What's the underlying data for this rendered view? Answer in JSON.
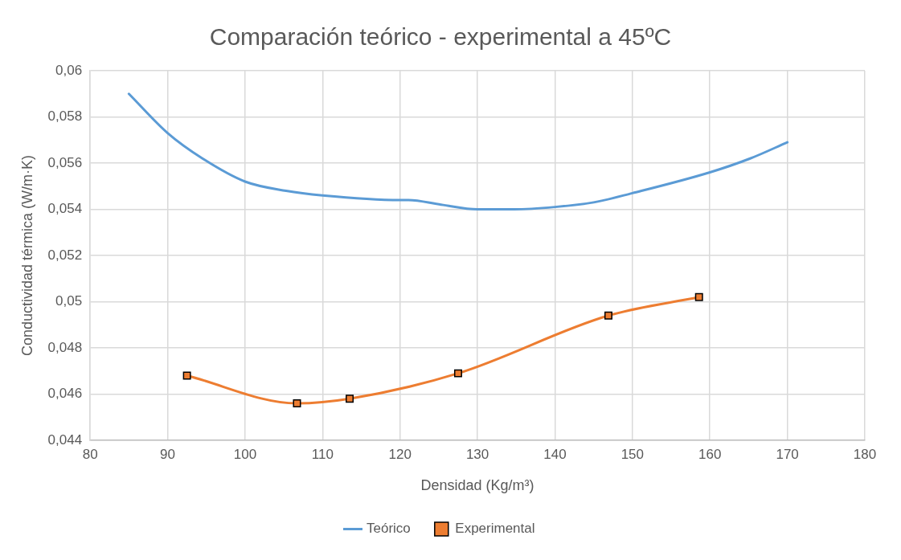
{
  "chart_data": {
    "type": "line",
    "title": "Comparación teórico - experimental a 45ºC",
    "xlabel": "Densidad (Kg/m³)",
    "ylabel": "Conductividad térmica (W/m·K)",
    "xlim": [
      80,
      180
    ],
    "xticks": [
      80,
      90,
      100,
      110,
      120,
      130,
      140,
      150,
      160,
      170,
      180
    ],
    "ylim": [
      0.044,
      0.06
    ],
    "yticks": [
      {
        "value": 0.044,
        "label": "0,044"
      },
      {
        "value": 0.046,
        "label": "0,046"
      },
      {
        "value": 0.048,
        "label": "0,048"
      },
      {
        "value": 0.05,
        "label": "0,05"
      },
      {
        "value": 0.052,
        "label": "0,052"
      },
      {
        "value": 0.054,
        "label": "0,054"
      },
      {
        "value": 0.056,
        "label": "0,056"
      },
      {
        "value": 0.058,
        "label": "0,058"
      },
      {
        "value": 0.06,
        "label": "0,06"
      }
    ],
    "grid": true,
    "legend": "bottom",
    "line_style": "solid",
    "series": [
      {
        "name": "Teórico",
        "color": "#5b9bd5",
        "marker": "none",
        "x": [
          85,
          90,
          94.5,
          100,
          105.3,
          110,
          120,
          121.1,
          125.3,
          130,
          134.7,
          140,
          145,
          150,
          160,
          165.2,
          170
        ],
        "values": [
          0.059,
          0.0573,
          0.0562,
          0.0552,
          0.0548,
          0.0546,
          0.0544,
          0.0544,
          0.0542,
          0.054,
          0.054,
          0.0541,
          0.0543,
          0.0547,
          0.0556,
          0.0562,
          0.0569
        ]
      },
      {
        "name": "Experimental",
        "color": "#ed7d31",
        "marker": "square",
        "x": [
          92.5,
          106.7,
          113.5,
          127.5,
          146.9,
          158.6
        ],
        "values": [
          0.0468,
          0.0456,
          0.0458,
          0.0469,
          0.0494,
          0.0502
        ]
      }
    ]
  }
}
